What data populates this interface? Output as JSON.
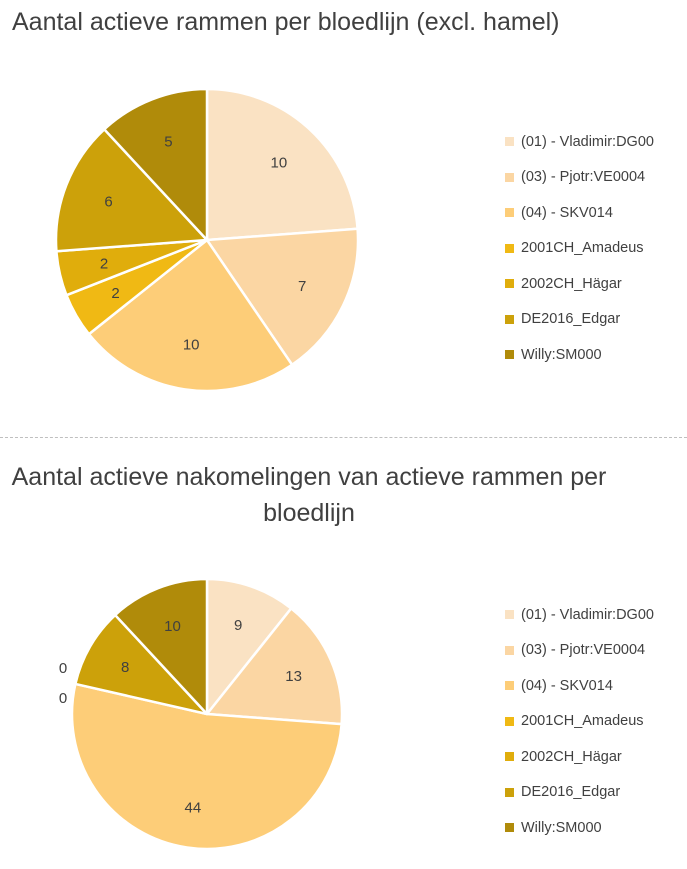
{
  "colors": [
    "#fae2c3",
    "#fbd6a3",
    "#fdcd78",
    "#f0b914",
    "#e0ad0c",
    "#cca10a",
    "#b08b0a"
  ],
  "chart_data": [
    {
      "type": "pie",
      "title": "Aantal actieve rammen per bloedlijn (excl. hamel)",
      "categories": [
        "(01) - Vladimir:DG00",
        "(03) - Pjotr:VE0004",
        "(04) - SKV014",
        "2001CH_Amadeus",
        "2002CH_Hägar",
        "DE2016_Edgar",
        "Willy:SM000"
      ],
      "values": [
        10,
        7,
        10,
        2,
        2,
        6,
        5
      ],
      "legend": "right"
    },
    {
      "type": "pie",
      "title": "Aantal actieve nakomelingen van actieve rammen per bloedlijn",
      "categories": [
        "(01) - Vladimir:DG00",
        "(03) - Pjotr:VE0004",
        "(04) - SKV014",
        "2001CH_Amadeus",
        "2002CH_Hägar",
        "DE2016_Edgar",
        "Willy:SM000"
      ],
      "values": [
        9,
        13,
        44,
        0,
        0,
        8,
        10
      ],
      "legend": "right"
    }
  ]
}
